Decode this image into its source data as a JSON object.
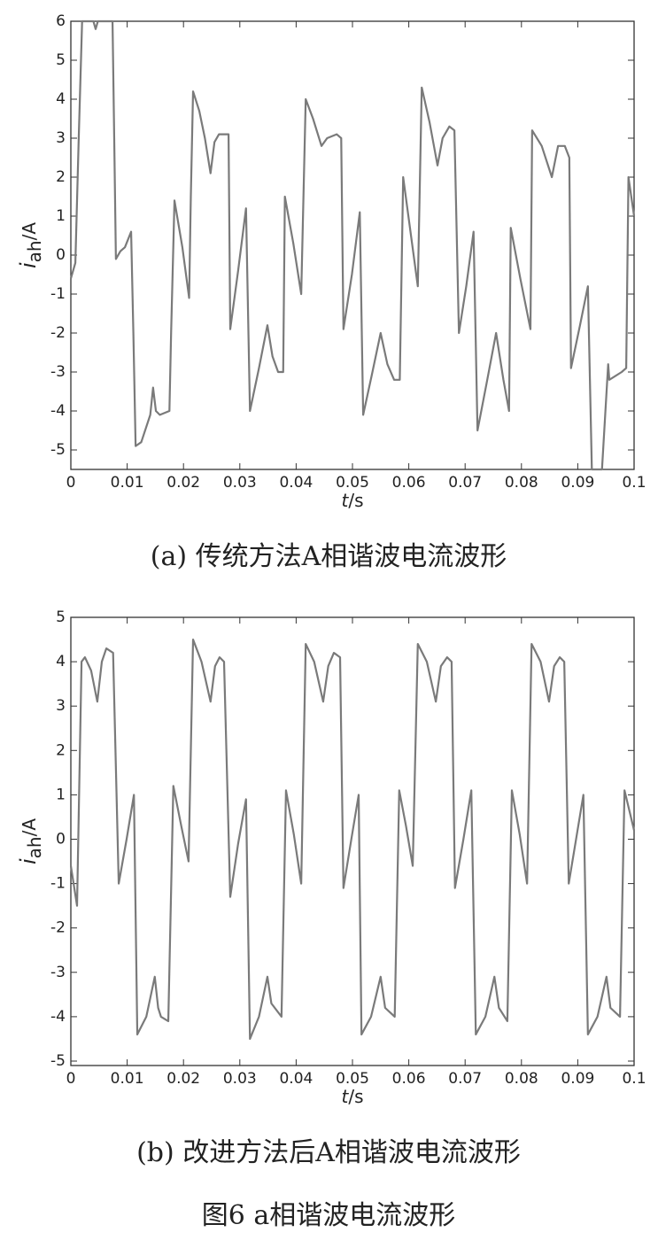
{
  "chart_data": [
    {
      "type": "line",
      "caption": "(a)  传统方法A相谐波电流波形",
      "xlabel": {
        "var": "t",
        "unit": "/s"
      },
      "ylabel": {
        "var": "i",
        "sub": "ah",
        "unit": "/A"
      },
      "xlim": [
        0,
        0.1
      ],
      "ylim": [
        -5.5,
        6
      ],
      "xticks": [
        0,
        0.01,
        0.02,
        0.03,
        0.04,
        0.05,
        0.06,
        0.07,
        0.08,
        0.09,
        0.1
      ],
      "yticks": [
        -5,
        -4,
        -3,
        -2,
        -1,
        0,
        1,
        2,
        3,
        4,
        5,
        6
      ],
      "color": "#7a7a7a",
      "x": [
        0,
        0.0008,
        0.0014,
        0.002,
        0.004,
        0.0044,
        0.0048,
        0.0074,
        0.0077,
        0.008,
        0.0088,
        0.0096,
        0.0107,
        0.0111,
        0.0115,
        0.0125,
        0.0141,
        0.0146,
        0.0151,
        0.0158,
        0.0175,
        0.0178,
        0.0184,
        0.0198,
        0.021,
        0.0213,
        0.0217,
        0.0228,
        0.0238,
        0.0248,
        0.0255,
        0.0263,
        0.028,
        0.0283,
        0.0297,
        0.0311,
        0.0318,
        0.0334,
        0.0349,
        0.0358,
        0.0368,
        0.0377,
        0.038,
        0.0395,
        0.0409,
        0.0417,
        0.043,
        0.0445,
        0.0455,
        0.0472,
        0.048,
        0.0484,
        0.0499,
        0.0513,
        0.0519,
        0.0534,
        0.055,
        0.0562,
        0.0574,
        0.0584,
        0.059,
        0.0603,
        0.0616,
        0.0623,
        0.0637,
        0.0651,
        0.066,
        0.0672,
        0.0681,
        0.0689,
        0.0702,
        0.0715,
        0.0722,
        0.0738,
        0.0755,
        0.0768,
        0.0778,
        0.0781,
        0.0798,
        0.0816,
        0.0819,
        0.0836,
        0.0854,
        0.0865,
        0.0877,
        0.0885,
        0.0888,
        0.0904,
        0.0918,
        0.0925,
        0.0943,
        0.0954,
        0.0956,
        0.0978,
        0.0986,
        0.099,
        0.1
      ],
      "values": [
        -0.6,
        -0.2,
        3,
        6,
        6,
        5.8,
        6,
        6,
        3,
        -0.1,
        0.1,
        0.2,
        0.6,
        -2,
        -4.9,
        -4.8,
        -4.1,
        -3.4,
        -4.0,
        -4.1,
        -4.0,
        -2,
        1.4,
        0.2,
        -1.1,
        1.5,
        4.2,
        3.7,
        3.0,
        2.1,
        2.9,
        3.1,
        3.1,
        -1.9,
        -0.4,
        1.2,
        -4.0,
        -2.9,
        -1.8,
        -2.6,
        -3.0,
        -3.0,
        1.5,
        0.3,
        -1.0,
        4.0,
        3.5,
        2.8,
        3.0,
        3.1,
        3.0,
        -1.9,
        -0.5,
        1.1,
        -4.1,
        -3.1,
        -2.0,
        -2.8,
        -3.2,
        -3.2,
        2.0,
        0.6,
        -0.8,
        4.3,
        3.4,
        2.3,
        3.0,
        3.3,
        3.2,
        -2.0,
        -0.8,
        0.6,
        -4.5,
        -3.3,
        -2.0,
        -3.2,
        -4.0,
        0.7,
        -0.6,
        -1.9,
        3.2,
        2.8,
        2.0,
        2.8,
        2.8,
        2.5,
        -2.9,
        -1.8,
        -0.8,
        -5.5,
        -5.5,
        -2.8,
        -3.2,
        -3.0,
        -2.9,
        2.0,
        1.0
      ]
    },
    {
      "type": "line",
      "caption": "(b)  改进方法后A相谐波电流波形",
      "xlabel": {
        "var": "t",
        "unit": "/s"
      },
      "ylabel": {
        "var": "i",
        "sub": "ah",
        "unit": "/A"
      },
      "xlim": [
        0,
        0.1
      ],
      "ylim": [
        -5.1,
        5
      ],
      "xticks": [
        0,
        0.01,
        0.02,
        0.03,
        0.04,
        0.05,
        0.06,
        0.07,
        0.08,
        0.09,
        0.1
      ],
      "yticks": [
        -5,
        -4,
        -3,
        -2,
        -1,
        0,
        1,
        2,
        3,
        4,
        5
      ],
      "color": "#7a7a7a",
      "x": [
        0,
        0.0011,
        0.0019,
        0.0025,
        0.0036,
        0.0047,
        0.0055,
        0.0063,
        0.0075,
        0.0085,
        0.0099,
        0.0112,
        0.0118,
        0.0134,
        0.0149,
        0.0155,
        0.016,
        0.0173,
        0.0182,
        0.0196,
        0.0209,
        0.0217,
        0.0232,
        0.0248,
        0.0256,
        0.0264,
        0.0272,
        0.0283,
        0.0297,
        0.0311,
        0.0318,
        0.0334,
        0.0349,
        0.0356,
        0.0374,
        0.0382,
        0.0396,
        0.0409,
        0.0417,
        0.0432,
        0.0448,
        0.0457,
        0.0467,
        0.0478,
        0.0484,
        0.0498,
        0.0511,
        0.0516,
        0.0533,
        0.055,
        0.0558,
        0.0575,
        0.0583,
        0.0595,
        0.0607,
        0.0616,
        0.0632,
        0.0648,
        0.0657,
        0.0668,
        0.0676,
        0.0682,
        0.0697,
        0.0711,
        0.0719,
        0.0736,
        0.0752,
        0.076,
        0.0775,
        0.0783,
        0.0797,
        0.081,
        0.0818,
        0.0834,
        0.0849,
        0.0858,
        0.0868,
        0.0876,
        0.0884,
        0.0897,
        0.091,
        0.0918,
        0.0935,
        0.0951,
        0.0958,
        0.0975,
        0.0983,
        0.1
      ],
      "values": [
        -0.6,
        -1.5,
        4.0,
        4.1,
        3.8,
        3.1,
        4.0,
        4.3,
        4.2,
        -1.0,
        0,
        1.0,
        -4.4,
        -4.0,
        -3.1,
        -3.8,
        -4.0,
        -4.1,
        1.2,
        0.3,
        -0.5,
        4.5,
        4.0,
        3.1,
        3.9,
        4.1,
        4.0,
        -1.3,
        -0.1,
        0.9,
        -4.5,
        -4.0,
        -3.1,
        -3.7,
        -4.0,
        1.1,
        0.1,
        -1.0,
        4.4,
        4.0,
        3.1,
        3.9,
        4.2,
        4.1,
        -1.1,
        0,
        1.0,
        -4.4,
        -4.0,
        -3.1,
        -3.8,
        -4.0,
        1.1,
        0.3,
        -0.6,
        4.4,
        4.0,
        3.1,
        3.9,
        4.1,
        4.0,
        -1.1,
        0,
        1.1,
        -4.4,
        -4.0,
        -3.1,
        -3.8,
        -4.1,
        1.1,
        0.1,
        -1.0,
        4.4,
        4.0,
        3.1,
        3.9,
        4.1,
        4.0,
        -1.0,
        0,
        1.0,
        -4.4,
        -4.0,
        -3.1,
        -3.8,
        -4.0,
        1.1,
        0.2
      ]
    }
  ],
  "figure_caption": "图6   a相谐波电流波形"
}
